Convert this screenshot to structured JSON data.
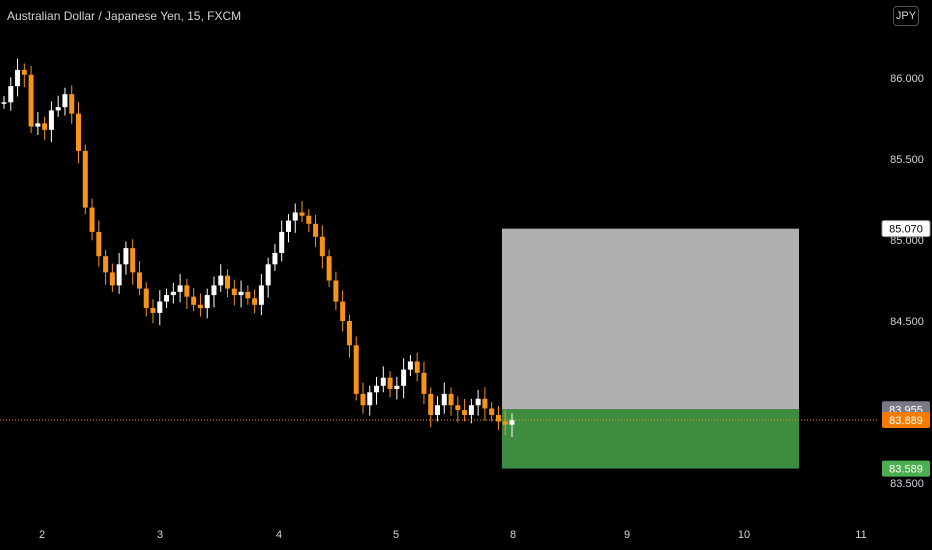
{
  "header": {
    "title": "Australian Dollar / Japanese Yen, 15, FXCM",
    "currency_button": "JPY"
  },
  "colors": {
    "background": "#000000",
    "candle_up": "#ffffff",
    "candle_down": "#f7931a",
    "profit_zone": "#4caf50",
    "loss_zone": "#cfcfcf",
    "current_price_line": "#f7931a",
    "entry_tag": "#787b86",
    "current_tag": "#f57c00",
    "target_tag": "#4caf50"
  },
  "chart_data": {
    "type": "candlestick",
    "title": "Australian Dollar / Japanese Yen, 15, FXCM",
    "y_ticks": [
      "86.000",
      "85.500",
      "85.000",
      "84.500",
      "83.500"
    ],
    "x_ticks": [
      "2",
      "3",
      "4",
      "5",
      "8",
      "9",
      "10",
      "11"
    ],
    "ylim": [
      83.35,
      86.25
    ],
    "series": [
      {
        "values": [
          85.85,
          85.95,
          86.05,
          86.02,
          85.7,
          85.72,
          85.68,
          85.8,
          85.82,
          85.9,
          85.78,
          85.55,
          85.2,
          85.05,
          84.9,
          84.8,
          84.72,
          84.85,
          84.95,
          84.8,
          84.7,
          84.58,
          84.55,
          84.62,
          84.66,
          84.68,
          84.72,
          84.65,
          84.6,
          84.58,
          84.66,
          84.72,
          84.78,
          84.7,
          84.66,
          84.68,
          84.64,
          84.6,
          84.72,
          84.85,
          84.92,
          85.05,
          85.12,
          85.17,
          85.15,
          85.1,
          85.02,
          84.9,
          84.75,
          84.62,
          84.5,
          84.35,
          84.05,
          83.98,
          84.06,
          84.1,
          84.15,
          84.08,
          84.1,
          84.2,
          84.25,
          84.18,
          84.05,
          83.92,
          83.98,
          84.05,
          83.98,
          83.95,
          83.92,
          83.98,
          84.02,
          83.96,
          83.92,
          83.88,
          83.86,
          83.89
        ]
      }
    ],
    "position": {
      "type": "long",
      "entry": 83.955,
      "target": 83.589,
      "stop": 85.07,
      "current": 83.889
    },
    "price_tags": {
      "stop": "85.070",
      "entry": "83.955",
      "current": "83.889",
      "target": "83.589"
    },
    "grid": false,
    "legend": "none"
  }
}
